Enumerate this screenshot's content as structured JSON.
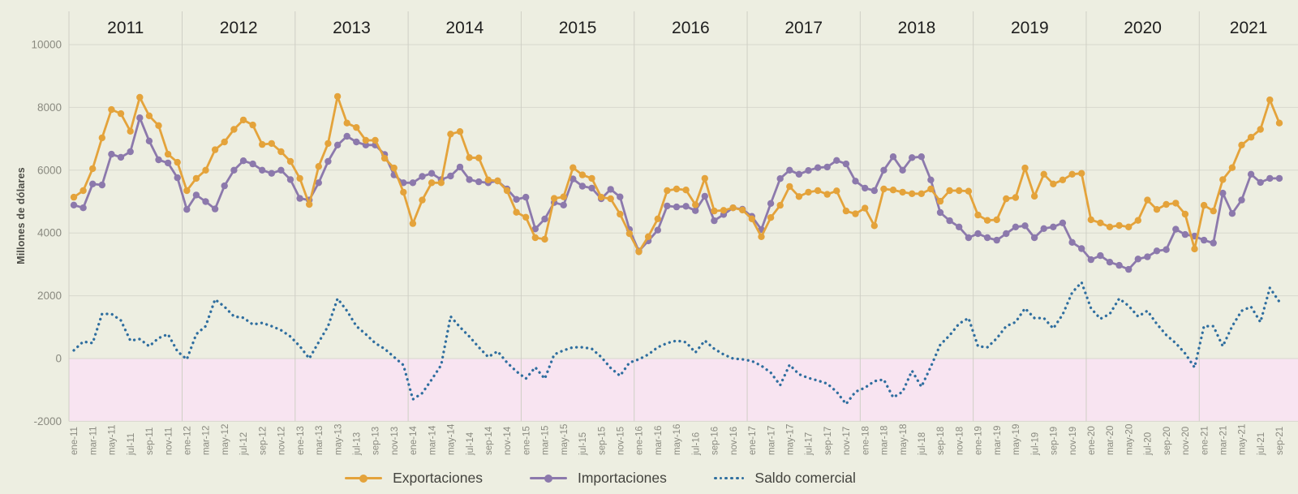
{
  "y_axis_title": "Millones de dólares",
  "chart_data": {
    "type": "line",
    "title": "",
    "xlabel": "",
    "ylabel": "Millones de dólares",
    "ylim": [
      -2000,
      10000
    ],
    "y_ticks": [
      -2000,
      0,
      2000,
      4000,
      6000,
      8000,
      10000
    ],
    "grid": true,
    "legend_position": "bottom",
    "background_color": "#EDEEE1",
    "negative_region_color": "#F8E4F1",
    "grid_color": "#D8D8CD",
    "year_line_color": "#CFCFC5",
    "years": [
      "2011",
      "2012",
      "2013",
      "2014",
      "2015",
      "2016",
      "2017",
      "2018",
      "2019",
      "2020",
      "2021"
    ],
    "x_tick_step_months": 2,
    "x_tick_labels": [
      "ene-11",
      "mar-11",
      "may-11",
      "jul-11",
      "sep-11",
      "nov-11",
      "ene-12",
      "mar-12",
      "may-12",
      "jul-12",
      "sep-12",
      "nov-12",
      "ene-13",
      "mar-13",
      "may-13",
      "jul-13",
      "sep-13",
      "nov-13",
      "ene-14",
      "mar-14",
      "may-14",
      "jul-14",
      "sep-14",
      "nov-14",
      "ene-15",
      "mar-15",
      "may-15",
      "jul-15",
      "sep-15",
      "nov-15",
      "ene-16",
      "mar-16",
      "may-16",
      "jul-16",
      "sep-16",
      "nov-16",
      "ene-17",
      "mar-17",
      "may-17",
      "jul-17",
      "sep-17",
      "nov-17",
      "ene-18",
      "mar-18",
      "may-18",
      "jul-18",
      "sep-18",
      "nov-18",
      "ene-19",
      "mar-19",
      "may-19",
      "jul-19",
      "sep-19",
      "nov-19",
      "ene-20",
      "mar-20",
      "may-20",
      "jul-20",
      "sep-20",
      "nov-20",
      "ene-21",
      "mar-21",
      "may-21",
      "jul-21",
      "sep-21"
    ],
    "series": [
      {
        "name": "Importaciones",
        "color": "#8C79AC",
        "style": "solid-with-markers",
        "values": [
          4890,
          4800,
          5560,
          5530,
          6510,
          6410,
          6590,
          7670,
          6930,
          6330,
          6230,
          5760,
          4750,
          5210,
          5000,
          4765,
          5500,
          6000,
          6300,
          6200,
          6000,
          5900,
          6000,
          5700,
          5100,
          5050,
          5600,
          6280,
          6800,
          7080,
          6900,
          6800,
          6800,
          6500,
          5850,
          5600,
          5600,
          5800,
          5900,
          5700,
          5815,
          6100,
          5700,
          5630,
          5600,
          5660,
          5400,
          5070,
          5140,
          4130,
          4445,
          4970,
          4890,
          5720,
          5490,
          5430,
          5090,
          5390,
          5150,
          4110,
          3425,
          3750,
          4090,
          4860,
          4830,
          4850,
          4710,
          5170,
          4390,
          4590,
          4800,
          4755,
          4530,
          4110,
          4940,
          5730,
          6000,
          5870,
          5990,
          6080,
          6100,
          6310,
          6200,
          5650,
          5430,
          5350,
          6000,
          6430,
          6000,
          6400,
          6430,
          5690,
          4650,
          4390,
          4190,
          3850,
          3980,
          3850,
          3770,
          3980,
          4190,
          4230,
          3850,
          4140,
          4190,
          4320,
          3700,
          3500,
          3150,
          3280,
          3070,
          2970,
          2840,
          3170,
          3240,
          3430,
          3470,
          4120,
          3950,
          3900,
          3770,
          3680,
          5270,
          4620,
          5050,
          5870,
          5610,
          5740,
          5740
        ]
      },
      {
        "name": "Exportaciones",
        "color": "#E4A33B",
        "style": "solid-with-markers",
        "values": [
          5140,
          5350,
          6050,
          7030,
          7930,
          7800,
          7240,
          8320,
          7730,
          7420,
          6510,
          6250,
          5350,
          5740,
          6000,
          6650,
          6900,
          7300,
          7600,
          7440,
          6820,
          6850,
          6590,
          6280,
          5740,
          4910,
          6120,
          6850,
          8350,
          7500,
          7360,
          6950,
          6950,
          6380,
          6070,
          5300,
          4300,
          5050,
          5600,
          5600,
          7150,
          7230,
          6400,
          6390,
          5690,
          5660,
          5350,
          4660,
          4500,
          3850,
          3800,
          5100,
          5150,
          6080,
          5850,
          5740,
          5140,
          5090,
          4600,
          3980,
          3400,
          3880,
          4450,
          5350,
          5400,
          5370,
          4900,
          5740,
          4700,
          4720,
          4800,
          4730,
          4450,
          3880,
          4490,
          4880,
          5480,
          5160,
          5300,
          5350,
          5230,
          5340,
          4700,
          4610,
          4790,
          4230,
          5400,
          5370,
          5300,
          5250,
          5250,
          5400,
          5010,
          5350,
          5350,
          5330,
          4570,
          4400,
          4420,
          5090,
          5130,
          6070,
          5170,
          5870,
          5560,
          5690,
          5870,
          5900,
          4420,
          4320,
          4190,
          4240,
          4190,
          4400,
          5050,
          4750,
          4910,
          4950,
          4600,
          3490,
          4880,
          4700,
          5700,
          6080,
          6800,
          7050,
          7300,
          8240,
          7500
        ]
      },
      {
        "name": "Saldo comercial",
        "color": "#2F6E9F",
        "style": "dotted",
        "values": [
          260,
          540,
          490,
          1420,
          1420,
          1215,
          570,
          620,
          390,
          650,
          775,
          230,
          -25,
          775,
          1030,
          1885,
          1650,
          1340,
          1300,
          1085,
          1135,
          1030,
          905,
          700,
          390,
          0,
          520,
          1030,
          1910,
          1520,
          1030,
          775,
          490,
          310,
          50,
          -210,
          -1300,
          -1100,
          -670,
          -210,
          1340,
          1000,
          700,
          360,
          50,
          230,
          -130,
          -410,
          -640,
          -280,
          -645,
          130,
          260,
          360,
          360,
          310,
          50,
          -300,
          -550,
          -130,
          -25,
          130,
          360,
          490,
          570,
          520,
          190,
          570,
          310,
          130,
          0,
          -25,
          -80,
          -230,
          -450,
          -850,
          -200,
          -500,
          -620,
          -700,
          -800,
          -1060,
          -1450,
          -1060,
          -930,
          -720,
          -670,
          -1240,
          -1060,
          -390,
          -900,
          -260,
          440,
          740,
          1110,
          1290,
          390,
          360,
          640,
          1030,
          1160,
          1600,
          1290,
          1290,
          955,
          1400,
          2100,
          2430,
          1600,
          1265,
          1420,
          1910,
          1680,
          1340,
          1520,
          1100,
          750,
          490,
          160,
          -285,
          1030,
          1030,
          390,
          1030,
          1520,
          1650,
          1160,
          2250,
          1810
        ]
      }
    ]
  },
  "legend": {
    "exportaciones": "Exportaciones",
    "importaciones": "Importaciones",
    "saldo": "Saldo comercial"
  }
}
